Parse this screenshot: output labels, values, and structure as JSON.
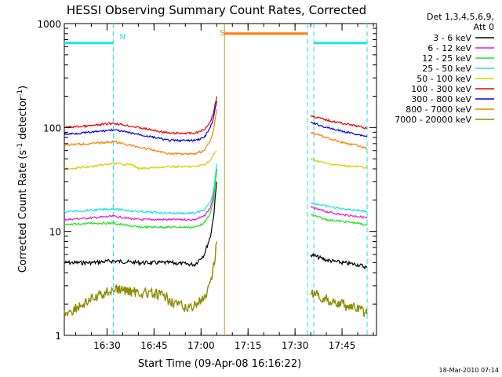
{
  "chart_data": {
    "type": "line",
    "title": "HESSI Observing Summary Count Rates, Corrected",
    "xlabel": "Start Time (09-Apr-08 16:16:22)",
    "ylabel_main": "Corrected Count Rate (s",
    "ylabel_sup1": "-1",
    "ylabel_mid": " detector",
    "ylabel_sup2": "-1",
    "ylabel_end": ")",
    "ylog": true,
    "ylim": [
      1,
      1000
    ],
    "xlim": [
      "16:16:22",
      "17:56:00"
    ],
    "x_tick_labels": [
      "16:30",
      "16:45",
      "17:00",
      "17:15",
      "17:30",
      "17:45"
    ],
    "y_tick_labels": [
      "1",
      "10",
      "100",
      "1000"
    ],
    "timestamp": "18-Mar-2010 07:14",
    "legend": {
      "header_line1": "Det 1,3,4,5,6,9,",
      "header_line2": "Att 0",
      "entries": [
        {
          "label": "3 - 6 keV",
          "color": "#000000"
        },
        {
          "label": "6 - 12 keV",
          "color": "#e619e6"
        },
        {
          "label": "12 - 25 keV",
          "color": "#19e619"
        },
        {
          "label": "25 - 50 keV",
          "color": "#19e6e6"
        },
        {
          "label": "50 - 100 keV",
          "color": "#d2d200"
        },
        {
          "label": "100 - 300 keV",
          "color": "#e60000"
        },
        {
          "label": "300 - 800 keV",
          "color": "#0000e6"
        },
        {
          "label": "800 - 7000 keV",
          "color": "#ff7f00"
        },
        {
          "label": "7000 - 20000 keV",
          "color": "#8c8c00"
        }
      ]
    },
    "flags": [
      {
        "label": "N",
        "color": "#19e6e6"
      },
      {
        "label": "S",
        "color": "#c89632"
      }
    ],
    "series": [
      {
        "name": "3 - 6 keV",
        "color": "#000000",
        "segments": [
          {
            "x": [
              "16:16:22",
              "16:25",
              "16:32",
              "16:40",
              "16:50",
              "16:58",
              "17:01",
              "17:03",
              "17:04",
              "17:05"
            ],
            "y": [
              5,
              5,
              5.2,
              5,
              5,
              4.8,
              6,
              9,
              14,
              30
            ]
          },
          {
            "x": [
              "17:35",
              "17:40",
              "17:45",
              "17:50",
              "17:53"
            ],
            "y": [
              6,
              5.3,
              5,
              4.8,
              4.5
            ]
          }
        ]
      },
      {
        "name": "6 - 12 keV",
        "color": "#e619e6",
        "segments": [
          {
            "x": [
              "16:16:22",
              "16:25",
              "16:32",
              "16:40",
              "16:50",
              "16:58",
              "17:01",
              "17:03",
              "17:04",
              "17:05"
            ],
            "y": [
              13,
              13.5,
              14,
              13,
              13,
              13,
              14,
              17,
              22,
              40
            ]
          },
          {
            "x": [
              "17:35",
              "17:40",
              "17:45",
              "17:50",
              "17:53"
            ],
            "y": [
              17,
              15.5,
              14.5,
              14,
              13.5
            ]
          }
        ]
      },
      {
        "name": "12 - 25 keV",
        "color": "#19e619",
        "segments": [
          {
            "x": [
              "16:16:22",
              "16:25",
              "16:32",
              "16:40",
              "16:50",
              "16:58",
              "17:01",
              "17:03",
              "17:04",
              "17:05"
            ],
            "y": [
              11.5,
              12,
              12,
              11,
              11,
              11,
              12,
              15,
              20,
              38
            ]
          },
          {
            "x": [
              "17:35",
              "17:40",
              "17:45",
              "17:50",
              "17:53"
            ],
            "y": [
              14.5,
              13,
              12.5,
              12,
              11.5
            ]
          }
        ]
      },
      {
        "name": "25 - 50 keV",
        "color": "#19e6e6",
        "segments": [
          {
            "x": [
              "16:16:22",
              "16:25",
              "16:32",
              "16:40",
              "16:50",
              "16:58",
              "17:01",
              "17:03",
              "17:04",
              "17:05"
            ],
            "y": [
              15.5,
              16,
              16.5,
              15.5,
              15,
              15,
              16,
              19,
              25,
              45
            ]
          },
          {
            "x": [
              "17:35",
              "17:40",
              "17:45",
              "17:50",
              "17:53"
            ],
            "y": [
              19,
              17.5,
              16.5,
              16,
              15.5
            ]
          }
        ]
      },
      {
        "name": "50 - 100 keV",
        "color": "#d2d200",
        "segments": [
          {
            "x": [
              "16:16:22",
              "16:25",
              "16:32",
              "16:38",
              "16:40",
              "16:50",
              "16:58",
              "17:01",
              "17:03",
              "17:04",
              "17:05"
            ],
            "y": [
              40,
              42,
              45,
              44,
              40,
              42,
              42,
              44,
              48,
              55,
              60
            ]
          },
          {
            "x": [
              "17:35",
              "17:40",
              "17:45",
              "17:50",
              "17:53"
            ],
            "y": [
              50,
              45,
              43,
              42,
              41
            ]
          }
        ]
      },
      {
        "name": "100 - 300 keV",
        "color": "#e60000",
        "segments": [
          {
            "x": [
              "16:16:22",
              "16:25",
              "16:32",
              "16:40",
              "16:50",
              "16:58",
              "17:01",
              "17:03",
              "17:04",
              "17:05"
            ],
            "y": [
              100,
              104,
              110,
              100,
              88,
              88,
              95,
              115,
              140,
              200
            ]
          },
          {
            "x": [
              "17:35",
              "17:40",
              "17:45",
              "17:50",
              "17:53"
            ],
            "y": [
              130,
              118,
              110,
              103,
              98
            ]
          }
        ]
      },
      {
        "name": "300 - 800 keV",
        "color": "#0000e6",
        "segments": [
          {
            "x": [
              "16:16:22",
              "16:25",
              "16:32",
              "16:40",
              "16:50",
              "16:58",
              "17:01",
              "17:03",
              "17:04",
              "17:05"
            ],
            "y": [
              86,
              90,
              95,
              86,
              75,
              75,
              80,
              100,
              125,
              180
            ]
          },
          {
            "x": [
              "17:35",
              "17:40",
              "17:45",
              "17:50",
              "17:53"
            ],
            "y": [
              112,
              100,
              92,
              86,
              82
            ]
          }
        ]
      },
      {
        "name": "800 - 7000 keV",
        "color": "#ff7f00",
        "segments": [
          {
            "x": [
              "16:16:22",
              "16:25",
              "16:32",
              "16:40",
              "16:50",
              "16:58",
              "17:01",
              "17:03",
              "17:04",
              "17:05"
            ],
            "y": [
              68,
              70,
              73,
              65,
              56,
              56,
              60,
              75,
              95,
              150
            ]
          },
          {
            "x": [
              "17:07:30",
              "17:34"
            ],
            "y": [
              800,
              800
            ]
          },
          {
            "x": [
              "17:35",
              "17:40",
              "17:45",
              "17:50",
              "17:53"
            ],
            "y": [
              90,
              80,
              72,
              67,
              63
            ]
          }
        ]
      },
      {
        "name": "7000 - 20000 keV",
        "color": "#8c8c00",
        "segments": [
          {
            "x": [
              "16:16:22",
              "16:25",
              "16:32",
              "16:40",
              "16:48",
              "16:55",
              "17:01",
              "17:03",
              "17:04",
              "17:05"
            ],
            "y": [
              1.6,
              2.2,
              2.8,
              2.6,
              2.4,
              1.8,
              2.2,
              3,
              4.5,
              8
            ]
          },
          {
            "x": [
              "17:35",
              "17:40",
              "17:45",
              "17:50",
              "17:53"
            ],
            "y": [
              2.6,
              2.2,
              2,
              1.8,
              1.6
            ]
          }
        ]
      }
    ]
  }
}
